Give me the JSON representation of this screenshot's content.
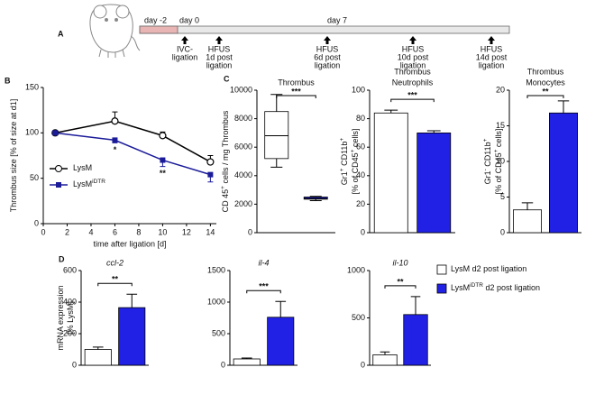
{
  "timeline": {
    "panel_label": "A",
    "days": [
      "day -2",
      "day 0",
      "day 7"
    ],
    "events": [
      [
        "IVC-",
        "ligation"
      ],
      [
        "HFUS",
        "1d post",
        "ligation"
      ],
      [
        "HFUS",
        "6d post",
        "ligation"
      ],
      [
        "HFUS",
        "10d post",
        "ligation"
      ],
      [
        "HFUS",
        "14d post",
        "ligation"
      ]
    ]
  },
  "legend": {
    "entries": [
      {
        "name": [
          "LysM d2 post ligation"
        ],
        "color": "#ffffff"
      },
      {
        "name": [
          "LysM",
          {
            "sup": "iDTR"
          },
          " d2 post ligation"
        ],
        "color": "#2121e6"
      }
    ]
  },
  "chart_data": [
    {
      "type": "line",
      "panel_label": "B",
      "xlabel": "time after ligation [d]",
      "ylabel": [
        [
          "Thrombus size [% of size at d1]"
        ]
      ],
      "x": [
        1,
        6,
        10,
        14
      ],
      "xlim": [
        0,
        14.5
      ],
      "xticks": [
        0,
        2,
        4,
        6,
        8,
        10,
        12,
        14
      ],
      "ylim": [
        0,
        150
      ],
      "yticks": [
        0,
        50,
        100,
        150
      ],
      "legend": "lower left",
      "series": [
        {
          "name": [
            "LysM"
          ],
          "color": "#000000",
          "marker": "circle",
          "values": [
            100,
            113,
            97,
            68
          ],
          "errors": [
            0,
            10,
            4,
            7
          ],
          "error_direction": "up"
        },
        {
          "name": [
            "LysM",
            {
              "sup": "iDTR"
            }
          ],
          "color": "#1c1c9a",
          "marker": "square",
          "values": [
            100,
            92,
            70,
            54
          ],
          "errors": [
            0,
            3,
            7,
            8
          ],
          "error_direction": "down"
        }
      ],
      "annotations": [
        {
          "x": 6,
          "text": "*"
        },
        {
          "x": 10,
          "text": "**"
        }
      ]
    },
    {
      "type": "box",
      "panel_label": "C",
      "title": [
        "Thrombus"
      ],
      "ylabel": [
        [
          "CD 45",
          {
            "sup": "+"
          },
          " cells / mg Thrombus"
        ]
      ],
      "ylim": [
        0,
        10000
      ],
      "yticks": [
        0,
        2000,
        4000,
        6000,
        8000,
        10000
      ],
      "boxes": [
        {
          "min": 4600,
          "q1": 5200,
          "median": 6800,
          "q3": 8500,
          "max": 9700,
          "color": "#ffffff"
        },
        {
          "min": 2250,
          "q1": 2350,
          "median": 2400,
          "q3": 2500,
          "max": 2550,
          "color": "#2121e6"
        }
      ],
      "significance": "***"
    },
    {
      "type": "bar",
      "title": [
        "Thrombus",
        "Neutrophils"
      ],
      "ylabel": [
        [
          "Gr1",
          {
            "sup": "+"
          },
          " CD11b",
          {
            "sup": "+"
          }
        ],
        [
          "[% of CD45",
          {
            "sup": "+"
          },
          " cells]"
        ]
      ],
      "ylim": [
        0,
        100
      ],
      "yticks": [
        0,
        20,
        40,
        60,
        80,
        100
      ],
      "values": [
        84,
        70
      ],
      "errors": [
        2,
        1.5
      ],
      "colors": [
        "#ffffff",
        "#2121e6"
      ],
      "significance": "***"
    },
    {
      "type": "bar",
      "title": [
        "Thrombus",
        "Monocytes"
      ],
      "ylabel": [
        [
          "Gr1",
          {
            "sup": "-"
          },
          " CD11b",
          {
            "sup": "+"
          }
        ],
        [
          "[% of CD45",
          {
            "sup": "+"
          },
          " cells]"
        ]
      ],
      "ylim": [
        0,
        20
      ],
      "yticks": [
        0,
        5,
        10,
        15,
        20
      ],
      "values": [
        3.2,
        16.8
      ],
      "errors": [
        1,
        1.7
      ],
      "colors": [
        "#ffffff",
        "#2121e6"
      ],
      "significance": "**"
    },
    {
      "type": "bar",
      "panel_label": "D",
      "title": [
        "ccl-2"
      ],
      "title_style": "italic",
      "ylabel": [
        [
          "mRNA expression"
        ],
        [
          "[% LysM]"
        ]
      ],
      "ylim": [
        0,
        600
      ],
      "yticks": [
        0,
        200,
        400,
        600
      ],
      "values": [
        100,
        365
      ],
      "errors": [
        15,
        85
      ],
      "colors": [
        "#ffffff",
        "#2121e6"
      ],
      "significance": "**"
    },
    {
      "type": "bar",
      "title": [
        "il-4"
      ],
      "title_style": "italic",
      "ylim": [
        0,
        1500
      ],
      "yticks": [
        0,
        500,
        1000,
        1500
      ],
      "values": [
        100,
        760
      ],
      "errors": [
        15,
        250
      ],
      "colors": [
        "#ffffff",
        "#2121e6"
      ],
      "significance": "***"
    },
    {
      "type": "bar",
      "title": [
        "il-10"
      ],
      "title_style": "italic",
      "ylim": [
        0,
        1000
      ],
      "yticks": [
        0,
        500,
        1000
      ],
      "values": [
        110,
        535
      ],
      "errors": [
        30,
        190
      ],
      "colors": [
        "#ffffff",
        "#2121e6"
      ],
      "significance": "**"
    }
  ]
}
